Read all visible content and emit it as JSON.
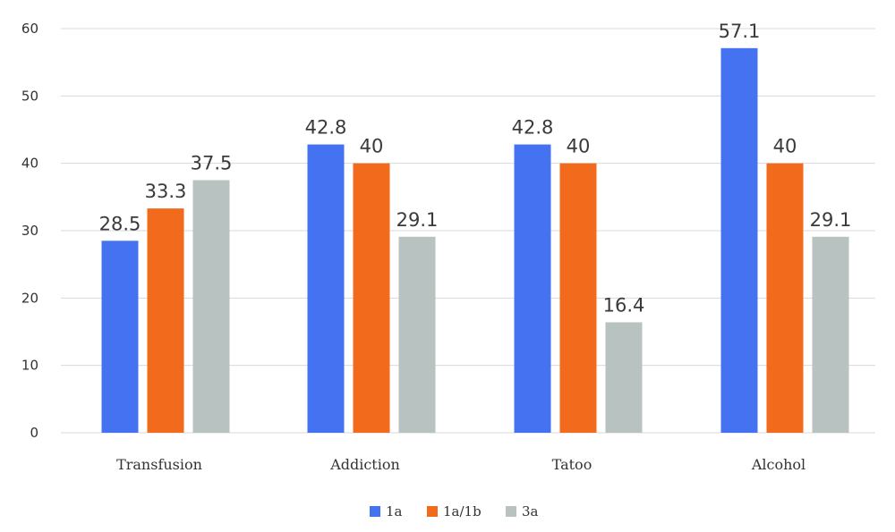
{
  "chart_data": {
    "type": "bar",
    "categories": [
      "Transfusion",
      "Addiction",
      "Tatoo",
      "Alcohol"
    ],
    "series": [
      {
        "name": "1a",
        "values": [
          28.5,
          42.8,
          42.8,
          57.1
        ],
        "color": "#4472f0"
      },
      {
        "name": "1a/1b",
        "values": [
          33.3,
          40,
          40,
          40
        ],
        "color": "#f26a1b"
      },
      {
        "name": "3a",
        "values": [
          37.5,
          29.1,
          16.4,
          29.1
        ],
        "color": "#b8c2c0"
      }
    ],
    "y_ticks": [
      "0",
      "10",
      "20",
      "30",
      "40",
      "50",
      "60"
    ],
    "data_labels": [
      [
        "28.5",
        "42.8",
        "42.8",
        "57.1"
      ],
      [
        "33.3",
        "40",
        "40",
        "40"
      ],
      [
        "37.5",
        "29.1",
        "16.4",
        "29.1"
      ]
    ],
    "ylim": [
      0,
      60
    ],
    "grid": true,
    "legend_position": "bottom"
  }
}
